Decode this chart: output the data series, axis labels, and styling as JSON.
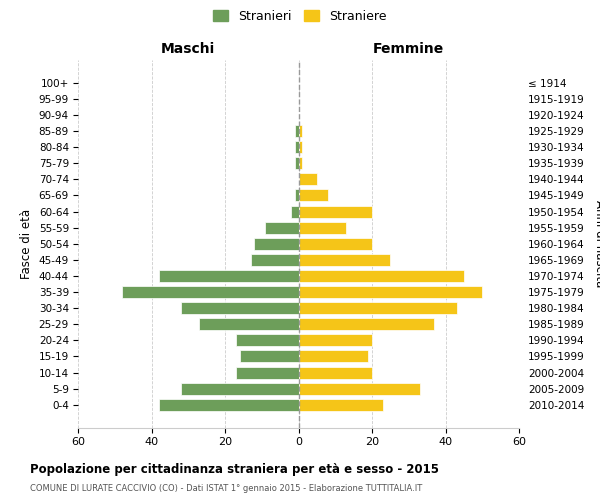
{
  "age_groups": [
    "0-4",
    "5-9",
    "10-14",
    "15-19",
    "20-24",
    "25-29",
    "30-34",
    "35-39",
    "40-44",
    "45-49",
    "50-54",
    "55-59",
    "60-64",
    "65-69",
    "70-74",
    "75-79",
    "80-84",
    "85-89",
    "90-94",
    "95-99",
    "100+"
  ],
  "birth_years": [
    "2010-2014",
    "2005-2009",
    "2000-2004",
    "1995-1999",
    "1990-1994",
    "1985-1989",
    "1980-1984",
    "1975-1979",
    "1970-1974",
    "1965-1969",
    "1960-1964",
    "1955-1959",
    "1950-1954",
    "1945-1949",
    "1940-1944",
    "1935-1939",
    "1930-1934",
    "1925-1929",
    "1920-1924",
    "1915-1919",
    "≤ 1914"
  ],
  "maschi": [
    38,
    32,
    17,
    16,
    17,
    27,
    32,
    48,
    38,
    13,
    12,
    9,
    2,
    1,
    0,
    1,
    1,
    1,
    0,
    0,
    0
  ],
  "femmine": [
    23,
    33,
    20,
    19,
    20,
    37,
    43,
    50,
    45,
    25,
    20,
    13,
    20,
    8,
    5,
    1,
    1,
    1,
    0,
    0,
    0
  ],
  "color_maschi": "#6d9e5a",
  "color_femmine": "#f5c518",
  "xlabel_left": "Maschi",
  "xlabel_right": "Femmine",
  "ylabel_left": "Fasce di età",
  "ylabel_right": "Anni di nascita",
  "title": "Popolazione per cittadinanza straniera per età e sesso - 2015",
  "subtitle": "COMUNE DI LURATE CACCIVIO (CO) - Dati ISTAT 1° gennaio 2015 - Elaborazione TUTTITALIA.IT",
  "legend_maschi": "Stranieri",
  "legend_femmine": "Straniere",
  "xlim": 60,
  "xticks": [
    -60,
    -40,
    -20,
    0,
    20,
    40,
    60
  ],
  "xtick_labels": [
    "60",
    "40",
    "20",
    "0",
    "20",
    "40",
    "60"
  ],
  "background_color": "#ffffff",
  "grid_color": "#cccccc"
}
